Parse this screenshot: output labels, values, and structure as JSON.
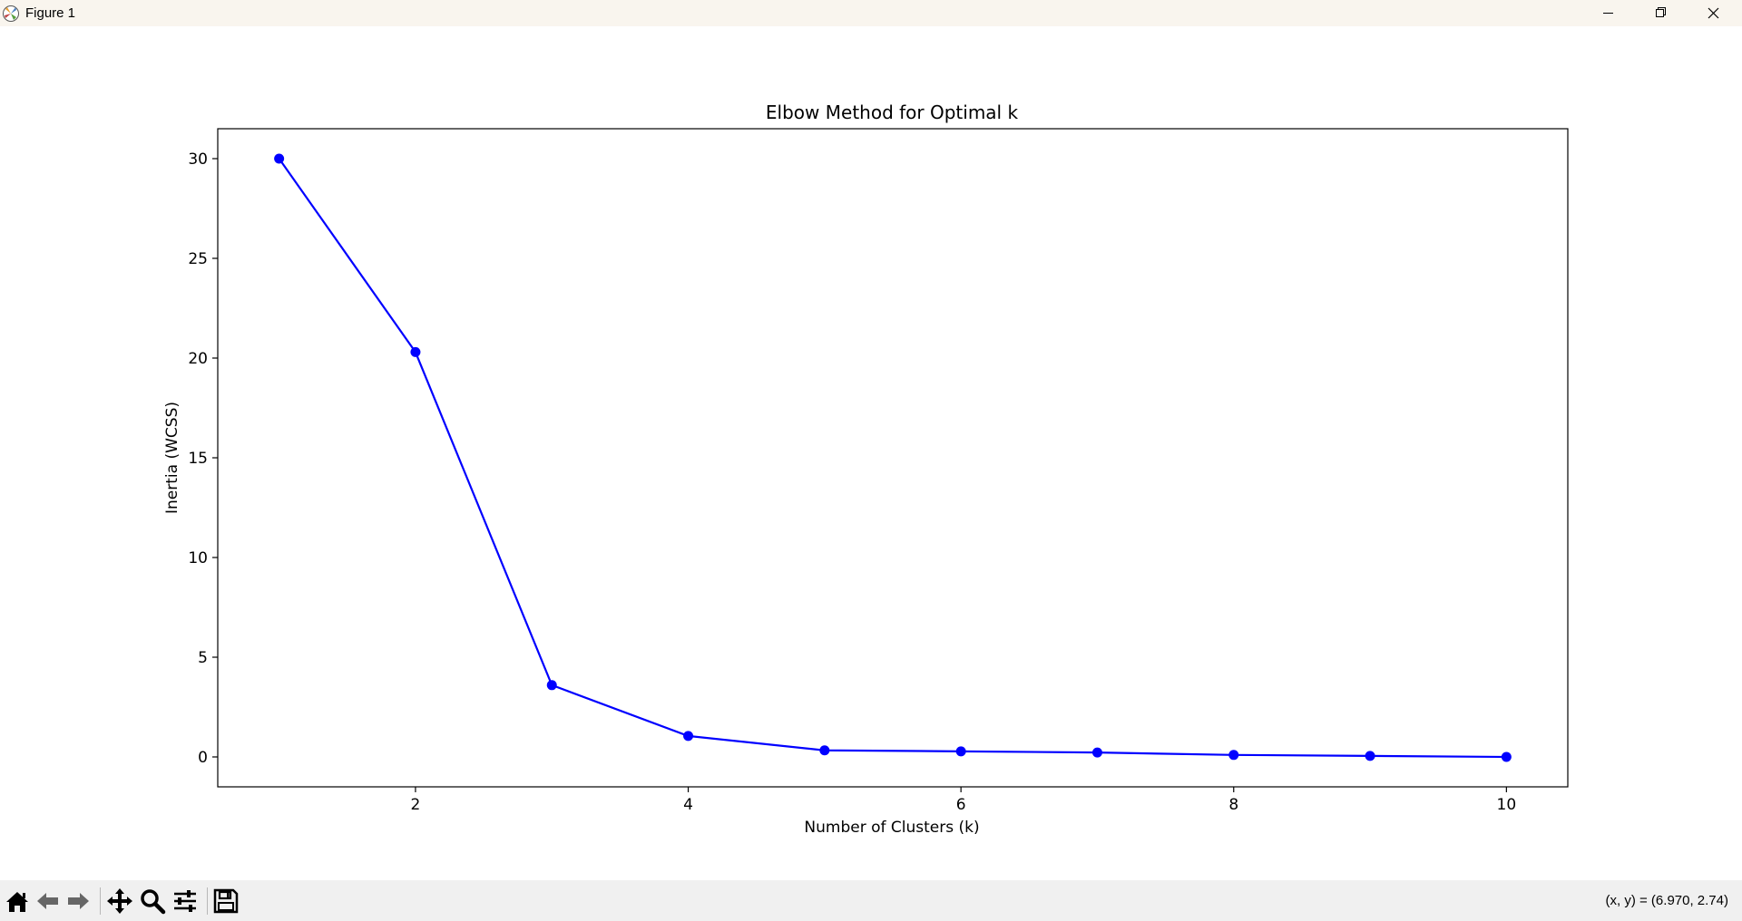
{
  "window": {
    "title": "Figure 1",
    "controls": [
      "minimize",
      "restore",
      "close"
    ]
  },
  "toolbar": {
    "buttons": [
      "home-icon",
      "back-icon",
      "forward-icon",
      "pan-icon",
      "zoom-icon",
      "configure-subplots-icon",
      "save-icon"
    ],
    "coordinates": "(x, y) = (6.970, 2.74)"
  },
  "chart_data": {
    "type": "line",
    "title": "Elbow Method for Optimal k",
    "xlabel": "Number of Clusters (k)",
    "ylabel": "Inertia (WCSS)",
    "x": [
      1,
      2,
      3,
      4,
      5,
      6,
      7,
      8,
      9,
      10
    ],
    "series": [
      {
        "values": [
          30.0,
          20.3,
          3.6,
          1.05,
          0.33,
          0.28,
          0.22,
          0.1,
          0.05,
          0.0
        ],
        "color": "#0000ff",
        "marker": "circle"
      }
    ],
    "xlim": [
      0.55,
      10.45
    ],
    "ylim": [
      -1.5,
      31.5
    ],
    "xticks": [
      "2",
      "4",
      "6",
      "8",
      "10"
    ],
    "yticks": [
      "0",
      "5",
      "10",
      "15",
      "20",
      "25",
      "30"
    ],
    "grid": false
  }
}
